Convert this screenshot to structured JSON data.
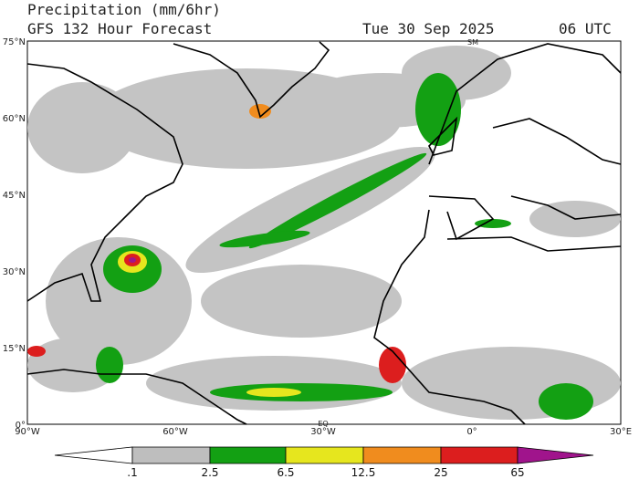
{
  "header": {
    "title": "Precipitation (mm/6hr)",
    "subtitle": "GFS 132 Hour Forecast",
    "date": "Tue 30 Sep 2025",
    "time": "06 UTC"
  },
  "map": {
    "lat_labels": [
      "75°N",
      "60°N",
      "45°N",
      "30°N",
      "15°N",
      "0°"
    ],
    "lon_labels": [
      "90°W",
      "60°W",
      "30°W",
      "0°",
      "30°E"
    ],
    "marks": [
      "SM",
      "EQ"
    ]
  },
  "colorbar": {
    "labels": [
      ".1",
      "2.5",
      "6.5",
      "12.5",
      "25",
      "65"
    ],
    "colors": [
      "#ffffff",
      "#bebebe",
      "#13a013",
      "#e6e61e",
      "#f08c1e",
      "#dc1e1e",
      "#a0148c"
    ]
  }
}
